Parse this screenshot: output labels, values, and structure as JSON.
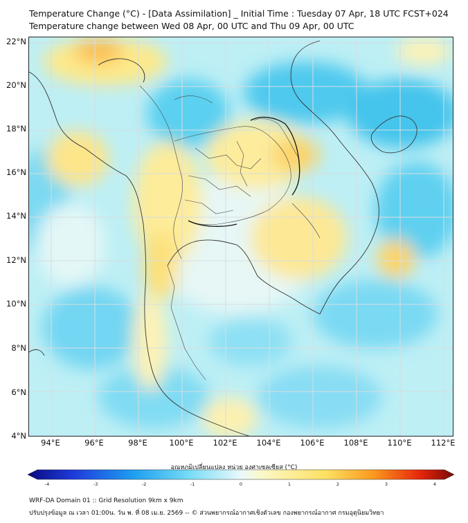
{
  "header": {
    "title_line1": "Temperature Change (°C) - [Data Assimilation] _ Initial Time : Tuesday 07 Apr, 18 UTC FCST+024",
    "title_line2": "Temperature change between Wed 08 Apr, 00 UTC and Thu 09 Apr, 00 UTC"
  },
  "map": {
    "lat_labels": [
      "22°N",
      "20°N",
      "18°N",
      "16°N",
      "14°N",
      "12°N",
      "10°N",
      "8°N",
      "6°N",
      "4°N"
    ],
    "lon_labels": [
      "94°E",
      "96°E",
      "98°E",
      "100°E",
      "102°E",
      "104°E",
      "106°E",
      "108°E",
      "110°E",
      "112°E"
    ]
  },
  "colorbar": {
    "title": "อุณหภูมิเปลี่ยนแปลง หน่วย องศาเซลเซียส (°C)",
    "ticks": [
      "-4",
      "-3",
      "-2",
      "-1",
      "0",
      "1",
      "2",
      "3",
      "4"
    ],
    "colors": [
      "#0a0a80",
      "#1e3cdc",
      "#1ea0f0",
      "#78dcf5",
      "#eaf9fb",
      "#fbf8c8",
      "#fde060",
      "#fb9a1e",
      "#e6260a",
      "#7a0808"
    ]
  },
  "footer": {
    "line1": "WRF-DA Domain 01 :: Grid Resolution 9km x 9km",
    "line2": "ปรับปรุงข้อมูล ณ เวลา 01:00น. วัน พ. ที่ 08 เม.ย. 2569 -- © ส่วนพยากรณ์อากาศเชิงตัวเลข กองพยากรณ์อากาศ กรมอุตุนิยมวิทยา"
  }
}
